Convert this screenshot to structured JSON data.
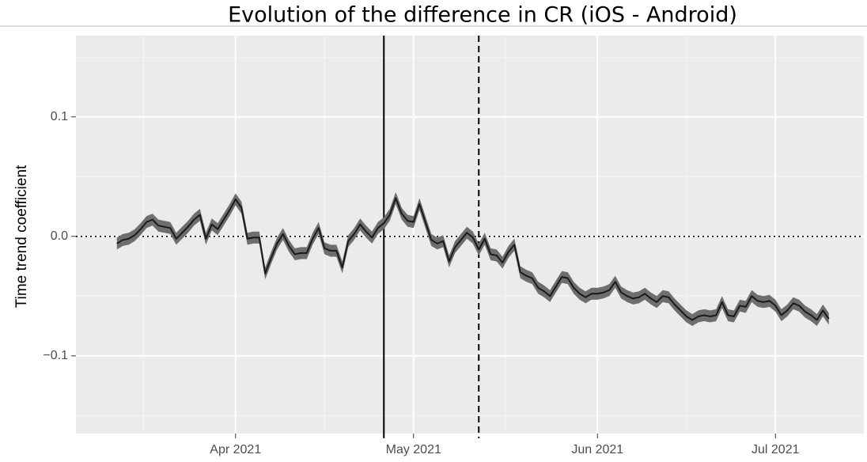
{
  "chart_data": {
    "type": "line",
    "title": "Evolution of the difference in CR (iOS - Android)",
    "y_label": "Time trend coefficient",
    "series": [
      {
        "color": "#1a1a1a",
        "band_color": "#6e6e6e",
        "band_halfwidth": 0.005,
        "values": [
          -0.006,
          -0.003,
          -0.002,
          0.001,
          0.006,
          0.012,
          0.014,
          0.009,
          0.008,
          0.007,
          -0.002,
          0.003,
          0.008,
          0.014,
          0.018,
          -0.002,
          0.01,
          0.006,
          0.014,
          0.022,
          0.031,
          0.024,
          -0.002,
          -0.001,
          -0.001,
          -0.031,
          -0.018,
          -0.006,
          0.002,
          -0.008,
          -0.015,
          -0.014,
          -0.014,
          -0.002,
          0.007,
          -0.01,
          -0.012,
          -0.012,
          -0.026,
          -0.004,
          0.002,
          0.01,
          0.004,
          -0.001,
          0.007,
          0.011,
          0.018,
          0.032,
          0.019,
          0.013,
          0.012,
          0.027,
          0.012,
          -0.003,
          -0.006,
          -0.004,
          -0.021,
          -0.009,
          -0.003,
          0.003,
          -0.001,
          -0.011,
          -0.002,
          -0.015,
          -0.016,
          -0.022,
          -0.013,
          -0.007,
          -0.03,
          -0.033,
          -0.035,
          -0.043,
          -0.046,
          -0.05,
          -0.042,
          -0.034,
          -0.035,
          -0.043,
          -0.048,
          -0.051,
          -0.048,
          -0.048,
          -0.047,
          -0.045,
          -0.038,
          -0.047,
          -0.05,
          -0.052,
          -0.051,
          -0.048,
          -0.052,
          -0.055,
          -0.05,
          -0.051,
          -0.057,
          -0.062,
          -0.067,
          -0.07,
          -0.067,
          -0.066,
          -0.067,
          -0.066,
          -0.055,
          -0.066,
          -0.067,
          -0.058,
          -0.059,
          -0.05,
          -0.054,
          -0.055,
          -0.054,
          -0.058,
          -0.066,
          -0.062,
          -0.056,
          -0.058,
          -0.063,
          -0.066,
          -0.07,
          -0.062,
          -0.069
        ]
      }
    ],
    "xlim": [
      -6.9,
      125.9
    ],
    "xticks": [
      {
        "value": 20,
        "label": "Apr 2021"
      },
      {
        "value": 50,
        "label": "May 2021"
      },
      {
        "value": 81,
        "label": "Jun 2021"
      },
      {
        "value": 111,
        "label": "Jul 2021"
      }
    ],
    "xminor": [
      4.5,
      35,
      65.5,
      96
    ],
    "ylim": [
      -0.165,
      0.168
    ],
    "yticks": [
      {
        "value": -0.1,
        "label": "−0.1"
      },
      {
        "value": 0,
        "label": "0.0"
      },
      0.1
    ],
    "yminor": [
      -0.15,
      -0.05,
      0.05,
      0.15
    ],
    "hline": 0,
    "vlines": [
      {
        "value": 45,
        "style": "solid"
      },
      {
        "value": 61,
        "style": "dashed"
      }
    ],
    "grid": true
  }
}
